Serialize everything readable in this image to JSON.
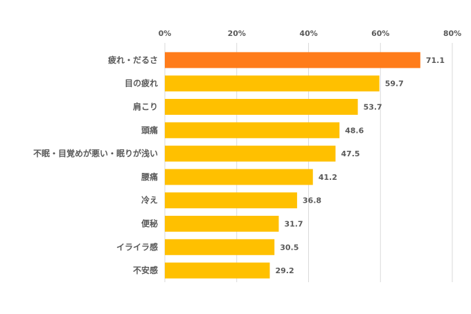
{
  "chart_data": {
    "type": "bar",
    "orientation": "horizontal",
    "categories": [
      "疲れ・だるさ",
      "目の疲れ",
      "肩こり",
      "頭痛",
      "不眠・目覚めが悪い・眠りが浅い",
      "腰痛",
      "冷え",
      "便秘",
      "イライラ感",
      "不安感"
    ],
    "values": [
      71.1,
      59.7,
      53.7,
      48.6,
      47.5,
      41.2,
      36.8,
      31.7,
      30.5,
      29.2
    ],
    "value_labels": [
      "71.1",
      "59.7",
      "53.7",
      "48.6",
      "47.5",
      "41.2",
      "36.8",
      "31.7",
      "30.5",
      "29.2"
    ],
    "xlim": [
      0,
      80
    ],
    "xticks": [
      0,
      20,
      40,
      60,
      80
    ],
    "xtick_labels": [
      "0%",
      "20%",
      "40%",
      "60%",
      "80%"
    ],
    "x_axis_position": "top",
    "grid": "vertical",
    "legend": "none",
    "colors": {
      "highlight": "#FF7C1A",
      "bar": "#FFC000",
      "grid": "#D9D9D9",
      "text": "#595959"
    },
    "highlight_index": 0
  }
}
